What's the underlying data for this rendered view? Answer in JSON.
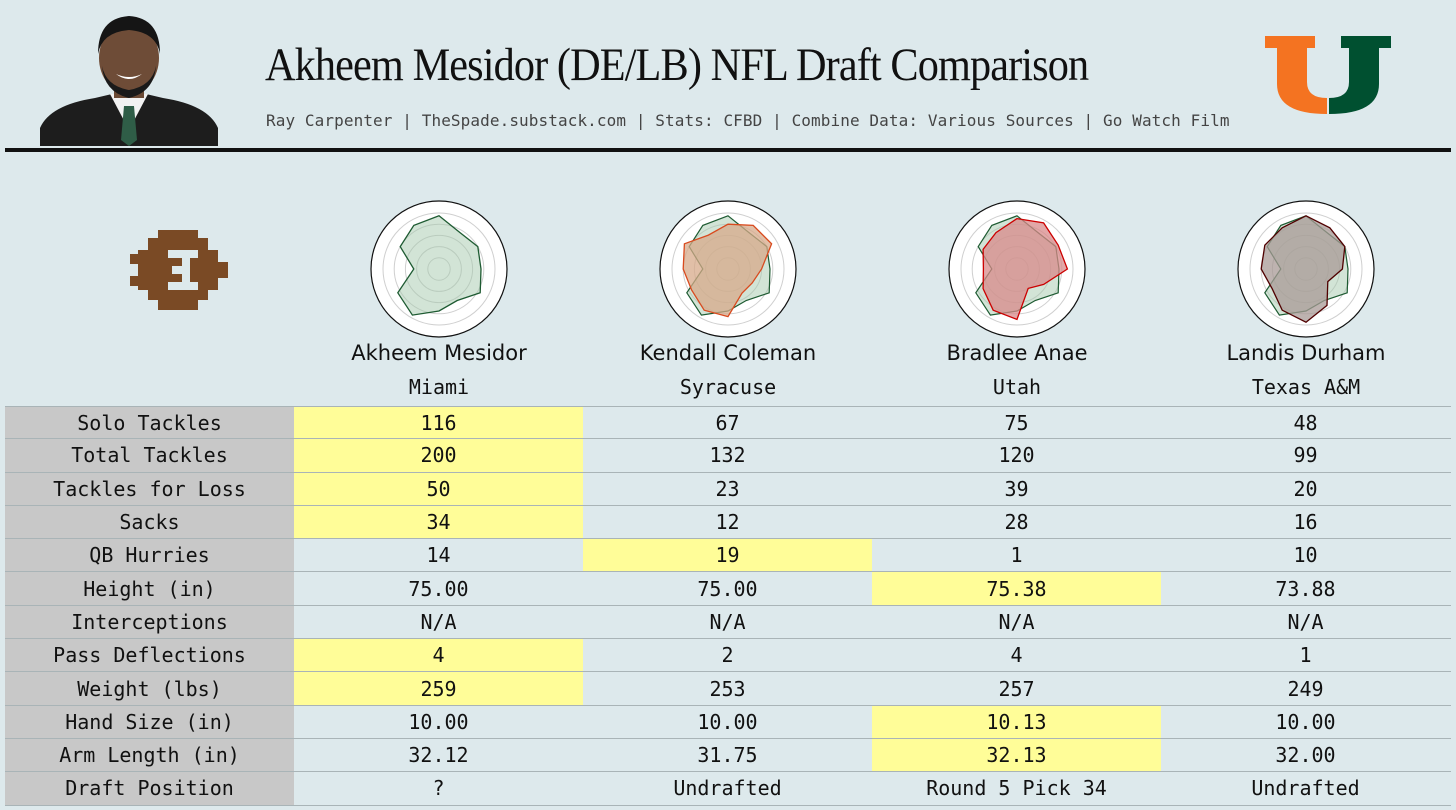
{
  "header": {
    "title": "Akheem Mesidor (DE/LB) NFL Draft Comparison",
    "subtitle": "Ray Carpenter | TheSpade.substack.com | Stats: CFBD | Combine Data: Various Sources | Go Watch Film"
  },
  "colors": {
    "background": "#dde9ec",
    "highlight": "#fffd98",
    "label_bg": "#c8c8c8",
    "logo_orange": "#f47321",
    "logo_green": "#005030",
    "target_outline": "#1e5b32",
    "target_fill": "#a6c9ad"
  },
  "players": [
    {
      "name": "Akheem Mesidor",
      "school": "Miami",
      "radar_outline": "#1e5b32",
      "radar_fill": "#a6c9ad"
    },
    {
      "name": "Kendall Coleman",
      "school": "Syracuse",
      "radar_outline": "#d94a1e",
      "radar_fill": "#d7a98a"
    },
    {
      "name": "Bradlee Anae",
      "school": "Utah",
      "radar_outline": "#cc0000",
      "radar_fill": "#d88a8a"
    },
    {
      "name": "Landis Durham",
      "school": "Texas A&M",
      "radar_outline": "#500000",
      "radar_fill": "#a89a95"
    }
  ],
  "chart_data": {
    "type": "table",
    "title": "Akheem Mesidor (DE/LB) NFL Draft Comparison",
    "columns": [
      "Akheem Mesidor",
      "Kendall Coleman",
      "Bradlee Anae",
      "Landis Durham"
    ],
    "rows": [
      {
        "label": "Solo Tackles",
        "values": [
          "116",
          "67",
          "75",
          "48"
        ],
        "highlight": 0
      },
      {
        "label": "Total Tackles",
        "values": [
          "200",
          "132",
          "120",
          "99"
        ],
        "highlight": 0
      },
      {
        "label": "Tackles for Loss",
        "values": [
          "50",
          "23",
          "39",
          "20"
        ],
        "highlight": 0
      },
      {
        "label": "Sacks",
        "values": [
          "34",
          "12",
          "28",
          "16"
        ],
        "highlight": 0
      },
      {
        "label": "QB Hurries",
        "values": [
          "14",
          "19",
          "1",
          "10"
        ],
        "highlight": 1
      },
      {
        "label": "Height (in)",
        "values": [
          "75.00",
          "75.00",
          "75.38",
          "73.88"
        ],
        "highlight": 2
      },
      {
        "label": "Interceptions",
        "values": [
          "N/A",
          "N/A",
          "N/A",
          "N/A"
        ],
        "highlight": -1
      },
      {
        "label": "Pass Deflections",
        "values": [
          "4",
          "2",
          "4",
          "1"
        ],
        "highlight": 0
      },
      {
        "label": "Weight (lbs)",
        "values": [
          "259",
          "253",
          "257",
          "249"
        ],
        "highlight": 0
      },
      {
        "label": "Hand Size (in)",
        "values": [
          "10.00",
          "10.00",
          "10.13",
          "10.00"
        ],
        "highlight": 2
      },
      {
        "label": "Arm Length (in)",
        "values": [
          "32.12",
          "31.75",
          "32.13",
          "32.00"
        ],
        "highlight": 2
      },
      {
        "label": "Draft Position",
        "values": [
          "?",
          "Undrafted",
          "Round 5 Pick 34",
          "Undrafted"
        ],
        "highlight": -1
      }
    ],
    "radar_profiles": [
      {
        "player": "Akheem Mesidor",
        "values": [
          0.95,
          0.75,
          0.8,
          0.75,
          0.85,
          0.65,
          0.75,
          0.95,
          0.85,
          0.45,
          0.8,
          0.9
        ]
      },
      {
        "player": "Kendall Coleman",
        "values": [
          0.8,
          0.9,
          0.9,
          0.6,
          0.5,
          0.5,
          0.85,
          0.85,
          0.75,
          0.8,
          0.9,
          0.7
        ]
      },
      {
        "player": "Bradlee Anae",
        "values": [
          0.9,
          0.95,
          0.85,
          0.9,
          0.55,
          0.4,
          0.9,
          0.85,
          0.7,
          0.6,
          0.7,
          0.75
        ]
      },
      {
        "player": "Landis Durham",
        "values": [
          0.95,
          0.85,
          0.8,
          0.65,
          0.45,
          0.75,
          0.95,
          0.85,
          0.7,
          0.8,
          0.85,
          0.85
        ]
      }
    ]
  }
}
